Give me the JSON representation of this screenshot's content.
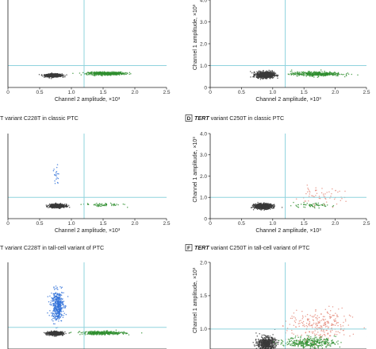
{
  "colors": {
    "wildtype": "#3a3a3a",
    "channel2_positive": "#2f8f2f",
    "channel1_positive": "#2e6fd8",
    "double_positive": "#e58a7a",
    "threshold": "#8fd3de",
    "axis": "#222222"
  },
  "chart_data": [
    {
      "type": "scatter",
      "letter": "",
      "title_gene": "",
      "title_rest": "",
      "xlabel": "Channel 2 amplitude, ×10³",
      "ylabel": "",
      "xlim": [
        0,
        2.5
      ],
      "ylim": [
        0,
        4
      ],
      "x_ticks": [
        "0",
        "0.5",
        "1.0",
        "1.5",
        "2.0",
        "2.5"
      ],
      "y_ticks": [],
      "threshold_x": 1.2,
      "threshold_y": 1.0,
      "clusters": [
        {
          "name": "",
          "color_key": "wildtype",
          "cx": 0.72,
          "cy": 0.55,
          "sx": 0.065,
          "sy": 0.035,
          "n": 700
        },
        {
          "name": "",
          "color_key": "channel2_positive",
          "cx": 1.55,
          "cy": 0.64,
          "sx": 0.14,
          "sy": 0.035,
          "n": 500
        }
      ]
    },
    {
      "type": "scatter",
      "letter": "",
      "title_gene": "",
      "title_rest": "",
      "xlabel": "Channel 2 amplitude, ×10³",
      "ylabel": "Channel 1 amplitude, ×10³",
      "xlim": [
        0,
        2.5
      ],
      "ylim": [
        0,
        4
      ],
      "x_ticks": [
        "0",
        "0.5",
        "1.0",
        "1.5",
        "2.0",
        "2.5"
      ],
      "y_ticks": [
        "0",
        "1.0",
        "2.0",
        "3.0",
        "4.0"
      ],
      "threshold_x": 1.2,
      "threshold_y": 1.0,
      "clusters": [
        {
          "name": "",
          "color_key": "wildtype",
          "cx": 0.88,
          "cy": 0.58,
          "sx": 0.07,
          "sy": 0.07,
          "n": 900
        },
        {
          "name": "",
          "color_key": "channel2_positive",
          "cx": 1.7,
          "cy": 0.62,
          "sx": 0.2,
          "sy": 0.05,
          "n": 400
        }
      ]
    },
    {
      "type": "scatter",
      "letter": "",
      "title_gene": "",
      "title_rest": "T variant C228T in classic PTC",
      "xlabel": "Channel 2 amplitude, ×10³",
      "ylabel": "",
      "xlim": [
        0,
        2.5
      ],
      "ylim": [
        0,
        4
      ],
      "x_ticks": [
        "0",
        "0.5",
        "1.0",
        "1.5",
        "2.0",
        "2.5"
      ],
      "y_ticks": [],
      "threshold_x": 1.2,
      "threshold_y": 1.0,
      "clusters": [
        {
          "name": "",
          "color_key": "wildtype",
          "cx": 0.78,
          "cy": 0.6,
          "sx": 0.06,
          "sy": 0.04,
          "n": 700
        },
        {
          "name": "",
          "color_key": "channel2_positive",
          "cx": 1.5,
          "cy": 0.65,
          "sx": 0.15,
          "sy": 0.04,
          "n": 60
        },
        {
          "name": "",
          "color_key": "channel1_positive",
          "cx": 0.75,
          "cy": 1.95,
          "sx": 0.03,
          "sy": 0.25,
          "n": 20
        }
      ]
    },
    {
      "type": "scatter",
      "letter": "D",
      "title_gene": "TERT",
      "title_rest": " variant C250T in classic PTC",
      "xlabel": "Channel 2 amplitude, ×10³",
      "ylabel": "Channel 1 amplitude, ×10³",
      "xlim": [
        0,
        2.5
      ],
      "ylim": [
        0,
        4
      ],
      "x_ticks": [
        "0",
        "0.5",
        "1.0",
        "1.5",
        "2.0",
        "2.5"
      ],
      "y_ticks": [
        "0",
        "1.0",
        "2.0",
        "3.0",
        "4.0"
      ],
      "threshold_x": 1.2,
      "threshold_y": 1.0,
      "clusters": [
        {
          "name": "",
          "color_key": "wildtype",
          "cx": 0.85,
          "cy": 0.58,
          "sx": 0.07,
          "sy": 0.06,
          "n": 800
        },
        {
          "name": "",
          "color_key": "channel2_positive",
          "cx": 1.6,
          "cy": 0.62,
          "sx": 0.18,
          "sy": 0.05,
          "n": 60
        },
        {
          "name": "",
          "color_key": "double_positive",
          "cx": 1.75,
          "cy": 1.05,
          "sx": 0.2,
          "sy": 0.2,
          "n": 60
        }
      ]
    },
    {
      "type": "scatter",
      "letter": "",
      "title_gene": "",
      "title_rest": "T variant C228T in tall-cell variant of PTC",
      "xlabel": "",
      "ylabel": "",
      "xlim": [
        0,
        2.5
      ],
      "ylim": [
        0,
        4
      ],
      "x_ticks": [],
      "y_ticks": [],
      "threshold_x": 1.2,
      "threshold_y": 1.0,
      "clusters": [
        {
          "name": "",
          "color_key": "wildtype",
          "cx": 0.75,
          "cy": 0.72,
          "sx": 0.06,
          "sy": 0.04,
          "n": 600
        },
        {
          "name": "",
          "color_key": "channel2_positive",
          "cx": 1.5,
          "cy": 0.74,
          "sx": 0.17,
          "sy": 0.04,
          "n": 350
        },
        {
          "name": "",
          "color_key": "channel1_positive",
          "cx": 0.78,
          "cy": 2.0,
          "sx": 0.05,
          "sy": 0.35,
          "n": 400
        }
      ]
    },
    {
      "type": "scatter",
      "letter": "F",
      "title_gene": "TERT",
      "title_rest": " variant C250T in tall-cell variant of PTC",
      "xlabel": "",
      "ylabel": "Channel 1 amplitude, ×10³",
      "xlim": [
        0,
        2.5
      ],
      "ylim": [
        0,
        2.0
      ],
      "x_ticks": [],
      "y_ticks": [
        "1.0",
        "1.5",
        "2.0"
      ],
      "threshold_x": 1.2,
      "threshold_y": 1.0,
      "clusters": [
        {
          "name": "",
          "color_key": "wildtype",
          "cx": 0.9,
          "cy": 0.78,
          "sx": 0.07,
          "sy": 0.05,
          "n": 600
        },
        {
          "name": "",
          "color_key": "channel2_positive",
          "cx": 1.6,
          "cy": 0.8,
          "sx": 0.2,
          "sy": 0.04,
          "n": 350
        },
        {
          "name": "",
          "color_key": "double_positive",
          "cx": 1.75,
          "cy": 1.05,
          "sx": 0.25,
          "sy": 0.12,
          "n": 250
        }
      ]
    }
  ]
}
